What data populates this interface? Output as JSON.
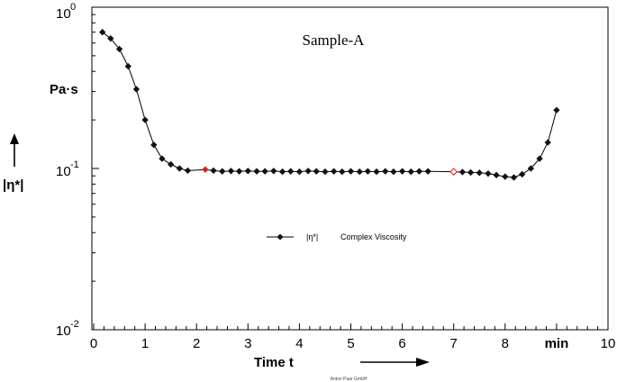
{
  "chart_data": {
    "type": "line",
    "title": "Sample-A",
    "xlabel": "Time t",
    "xunit": "min",
    "ylabel": "|η*|",
    "yunit": "Pa·s",
    "xlim": [
      0,
      10
    ],
    "ylim": [
      0.01,
      1
    ],
    "yscale": "log",
    "x_ticks": [
      "0",
      "1",
      "2",
      "3",
      "4",
      "5",
      "6",
      "7",
      "8",
      "min",
      "10"
    ],
    "y_ticks": [
      {
        "base": "10",
        "exp": "0"
      },
      {
        "base": "10",
        "exp": "-1"
      },
      {
        "base": "10",
        "exp": "-2"
      }
    ],
    "grid": false,
    "legend": {
      "position": "center-left",
      "symbol": "|η*|",
      "label": "Complex Viscosity"
    },
    "footer": "Anton Paar GmbH",
    "series": [
      {
        "name": "Complex Viscosity",
        "color": "#000000",
        "marker_color": "#111111",
        "highlight_color": "#e0201a",
        "highlight_points": [
          {
            "index": 11,
            "filled": true
          },
          {
            "index": 38,
            "filled": false
          }
        ],
        "x": [
          0.17,
          0.33,
          0.5,
          0.67,
          0.83,
          1.0,
          1.17,
          1.33,
          1.5,
          1.67,
          1.83,
          2.17,
          2.33,
          2.5,
          2.67,
          2.83,
          3.0,
          3.17,
          3.33,
          3.5,
          3.67,
          3.83,
          4.0,
          4.17,
          4.33,
          4.5,
          4.67,
          4.83,
          5.0,
          5.17,
          5.33,
          5.5,
          5.67,
          5.83,
          6.0,
          6.17,
          6.33,
          6.5,
          7.0,
          7.17,
          7.33,
          7.5,
          7.67,
          7.83,
          8.0,
          8.17,
          8.33,
          8.5,
          8.67,
          8.83,
          9.0
        ],
        "y": [
          0.7,
          0.64,
          0.55,
          0.43,
          0.31,
          0.2,
          0.14,
          0.115,
          0.106,
          0.1,
          0.097,
          0.0985,
          0.097,
          0.096,
          0.0965,
          0.096,
          0.0965,
          0.096,
          0.096,
          0.0965,
          0.0955,
          0.096,
          0.0955,
          0.0965,
          0.096,
          0.0955,
          0.096,
          0.0955,
          0.096,
          0.0955,
          0.096,
          0.0955,
          0.096,
          0.0955,
          0.096,
          0.0955,
          0.096,
          0.096,
          0.0955,
          0.095,
          0.0945,
          0.094,
          0.093,
          0.091,
          0.089,
          0.088,
          0.092,
          0.1,
          0.115,
          0.145,
          0.23
        ]
      }
    ]
  }
}
